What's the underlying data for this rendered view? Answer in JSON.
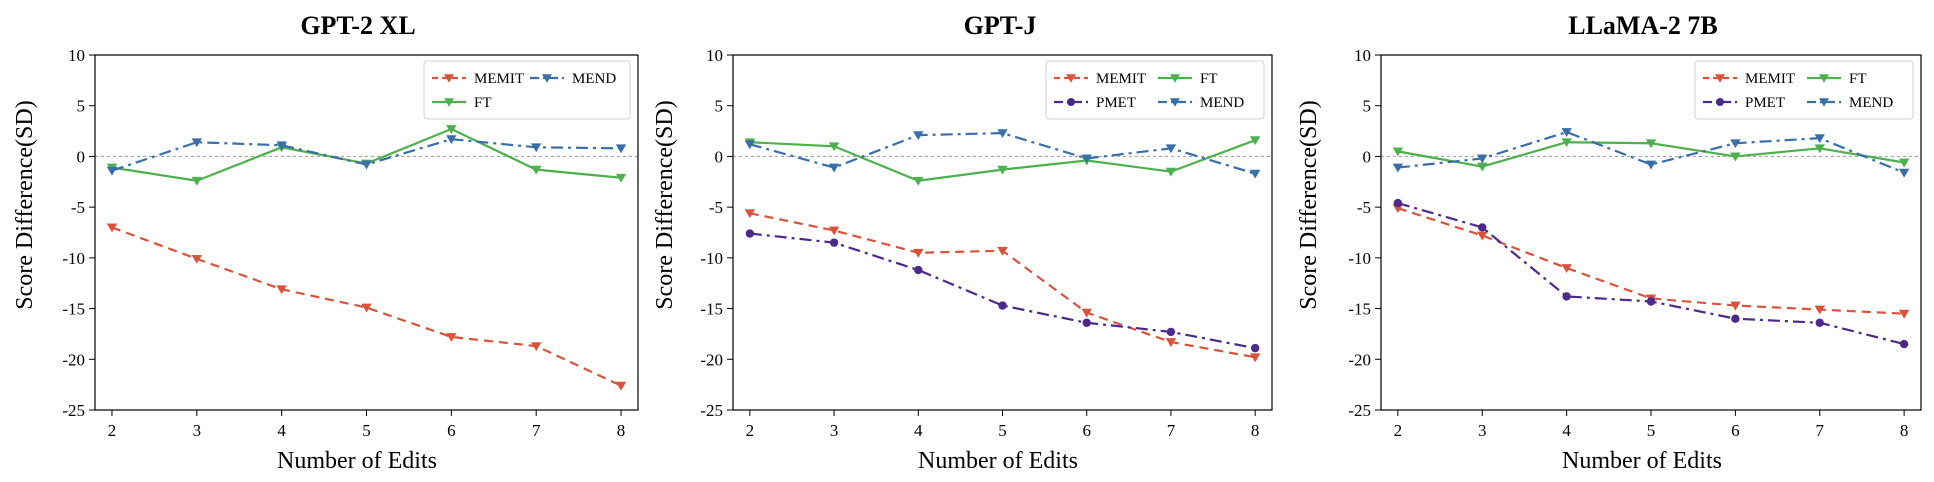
{
  "chart_data": [
    {
      "type": "line",
      "title": "GPT-2 XL",
      "xlabel": "Number of Edits",
      "ylabel": "Score Difference(SD)",
      "x": [
        2,
        3,
        4,
        5,
        6,
        7,
        8
      ],
      "xticks": [
        "2",
        "3",
        "4",
        "5",
        "6",
        "7",
        "8"
      ],
      "yticks": [
        "10",
        "5",
        "0",
        "-5",
        "-10",
        "-15",
        "-20",
        "-25"
      ],
      "ylim": [
        -25,
        10
      ],
      "reference_line": 0,
      "legend_position": "top-right",
      "legend_columns": 2,
      "series": [
        {
          "name": "MEMIT",
          "color": "#d9533b",
          "values": [
            -7.0,
            -10.1,
            -13.1,
            -14.9,
            -17.8,
            -18.7,
            -22.6
          ]
        },
        {
          "name": "FT",
          "color": "#4cb04c",
          "values": [
            -1.1,
            -2.4,
            0.9,
            -0.7,
            2.7,
            -1.3,
            -2.1
          ]
        },
        {
          "name": "MEND",
          "color": "#3a6ea8",
          "values": [
            -1.4,
            1.4,
            1.1,
            -0.8,
            1.7,
            0.9,
            0.8
          ]
        }
      ]
    },
    {
      "type": "line",
      "title": "GPT-J",
      "xlabel": "Number of Edits",
      "ylabel": "Score Difference(SD)",
      "x": [
        2,
        3,
        4,
        5,
        6,
        7,
        8
      ],
      "xticks": [
        "2",
        "3",
        "4",
        "5",
        "6",
        "7",
        "8"
      ],
      "yticks": [
        "10",
        "5",
        "0",
        "-5",
        "-10",
        "-15",
        "-20",
        "-25"
      ],
      "ylim": [
        -25,
        10
      ],
      "reference_line": 0,
      "legend_position": "top-right",
      "legend_columns": 2,
      "series": [
        {
          "name": "MEMIT",
          "color": "#d9533b",
          "values": [
            -5.6,
            -7.3,
            -9.5,
            -9.3,
            -15.4,
            -18.3,
            -19.8
          ]
        },
        {
          "name": "PMET",
          "color": "#4b2a8c",
          "values": [
            -7.6,
            -8.5,
            -11.2,
            -14.7,
            -16.4,
            -17.3,
            -18.9
          ]
        },
        {
          "name": "FT",
          "color": "#4cb04c",
          "values": [
            1.4,
            1.0,
            -2.4,
            -1.3,
            -0.4,
            -1.5,
            1.6
          ]
        },
        {
          "name": "MEND",
          "color": "#3a6ea8",
          "values": [
            1.2,
            -1.1,
            2.1,
            2.3,
            -0.2,
            0.8,
            -1.7
          ]
        }
      ]
    },
    {
      "type": "line",
      "title": "LLaMA-2 7B",
      "xlabel": "Number of Edits",
      "ylabel": "Score Difference(SD)",
      "x": [
        2,
        3,
        4,
        5,
        6,
        7,
        8
      ],
      "xticks": [
        "2",
        "3",
        "4",
        "5",
        "6",
        "7",
        "8"
      ],
      "yticks": [
        "10",
        "5",
        "0",
        "-5",
        "-10",
        "-15",
        "-20",
        "-25"
      ],
      "ylim": [
        -25,
        10
      ],
      "reference_line": 0,
      "legend_position": "top-right",
      "legend_columns": 2,
      "series": [
        {
          "name": "MEMIT",
          "color": "#d9533b",
          "values": [
            -5.1,
            -7.8,
            -11.0,
            -14.0,
            -14.7,
            -15.1,
            -15.5
          ]
        },
        {
          "name": "PMET",
          "color": "#4b2a8c",
          "values": [
            -4.6,
            -7.0,
            -13.8,
            -14.3,
            -16.0,
            -16.4,
            -18.5
          ]
        },
        {
          "name": "FT",
          "color": "#4cb04c",
          "values": [
            0.5,
            -1.0,
            1.4,
            1.3,
            0.0,
            0.8,
            -0.6
          ]
        },
        {
          "name": "MEND",
          "color": "#3a6ea8",
          "values": [
            -1.1,
            -0.2,
            2.4,
            -0.8,
            1.3,
            1.8,
            -1.6
          ]
        }
      ]
    }
  ]
}
